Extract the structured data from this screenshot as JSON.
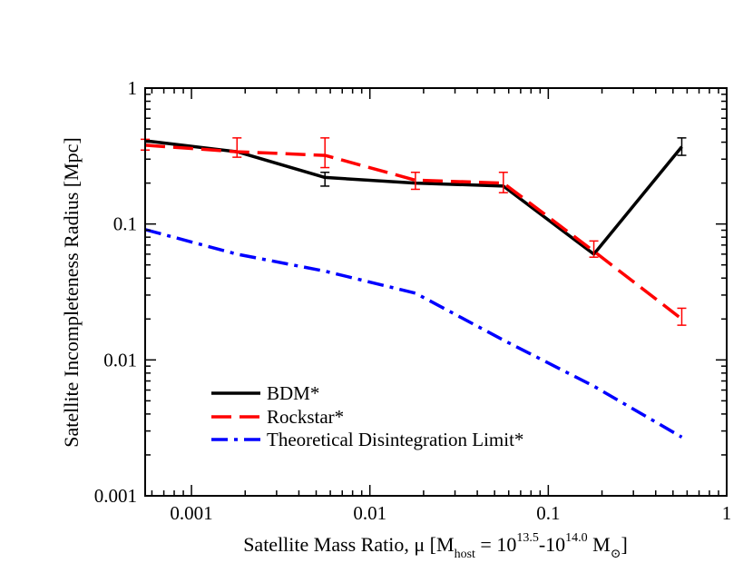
{
  "chart_data": {
    "type": "line",
    "title": "",
    "xlabel": {
      "prefix": "Satellite Mass Ratio, μ [M",
      "host_sub": "host",
      "middle1": " = 10",
      "exp1": "13.5",
      "middle2": "-10",
      "exp2": "14.0",
      "middle3": " M",
      "sun_sub": "⊙",
      "suffix": "]"
    },
    "ylabel": "Satellite Incompleteness Radius [Mpc]",
    "xscale": "log",
    "yscale": "log",
    "xlim": [
      0.00055,
      1
    ],
    "ylim": [
      0.001,
      1
    ],
    "xticks": [
      {
        "value": 0.001,
        "label": "0.001"
      },
      {
        "value": 0.01,
        "label": "0.01"
      },
      {
        "value": 0.1,
        "label": "0.1"
      },
      {
        "value": 1,
        "label": "1"
      }
    ],
    "yticks": [
      {
        "value": 0.001,
        "label": "0.001"
      },
      {
        "value": 0.01,
        "label": "0.01"
      },
      {
        "value": 0.1,
        "label": "0.1"
      },
      {
        "value": 1,
        "label": "1"
      }
    ],
    "series": [
      {
        "name": "BDM*",
        "color": "#000000",
        "dash": "solid",
        "x": [
          0.00055,
          0.0018,
          0.0056,
          0.018,
          0.056,
          0.18,
          0.56
        ],
        "y": [
          0.41,
          0.34,
          0.22,
          0.2,
          0.19,
          0.06,
          0.37
        ],
        "errorbars": [
          {
            "x": 0.0056,
            "lo": 0.19,
            "hi": 0.24
          },
          {
            "x": 0.56,
            "lo": 0.32,
            "hi": 0.43
          }
        ]
      },
      {
        "name": "Rockstar*",
        "color": "#ff0000",
        "dash": "dashed",
        "x": [
          0.00055,
          0.0018,
          0.0056,
          0.018,
          0.056,
          0.18,
          0.56
        ],
        "y": [
          0.38,
          0.34,
          0.32,
          0.21,
          0.2,
          0.063,
          0.02
        ],
        "errorbars": [
          {
            "x": 0.00055,
            "lo": 0.35,
            "hi": 0.42
          },
          {
            "x": 0.0018,
            "lo": 0.31,
            "hi": 0.43
          },
          {
            "x": 0.0056,
            "lo": 0.26,
            "hi": 0.43
          },
          {
            "x": 0.018,
            "lo": 0.18,
            "hi": 0.24
          },
          {
            "x": 0.056,
            "lo": 0.17,
            "hi": 0.24
          },
          {
            "x": 0.18,
            "lo": 0.057,
            "hi": 0.075
          },
          {
            "x": 0.56,
            "lo": 0.018,
            "hi": 0.024
          }
        ]
      },
      {
        "name": "Theoretical Disintegration Limit*",
        "color": "#0000ff",
        "dash": "dashdot",
        "x": [
          0.00055,
          0.0018,
          0.0056,
          0.018,
          0.056,
          0.18,
          0.56
        ],
        "y": [
          0.091,
          0.06,
          0.045,
          0.031,
          0.014,
          0.0064,
          0.0027
        ],
        "errorbars": []
      }
    ],
    "legend_position": "lower-left"
  }
}
